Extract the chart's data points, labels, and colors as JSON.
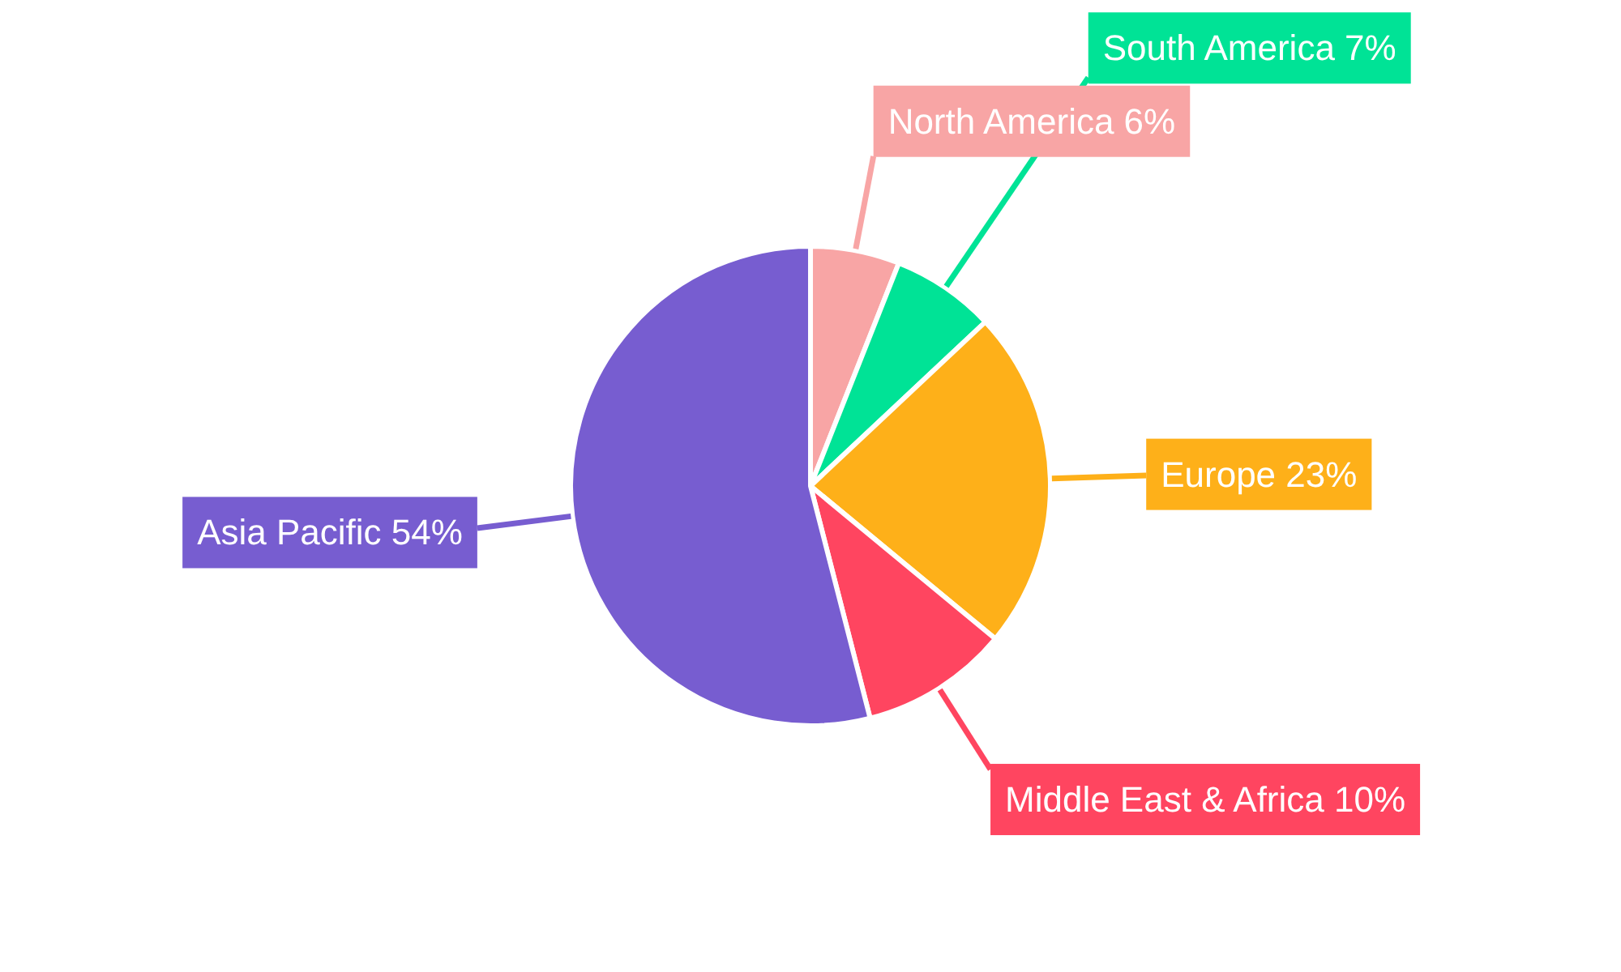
{
  "chart_data": {
    "type": "pie",
    "categories": [
      "North America",
      "South America",
      "Europe",
      "Middle East & Africa",
      "Asia Pacific"
    ],
    "values": [
      6,
      7,
      23,
      10,
      54
    ],
    "colors": [
      "#f8a5a5",
      "#00e396",
      "#feb019",
      "#ff4560",
      "#775dd0"
    ],
    "value_labels": [
      "6%",
      "7%",
      "23%",
      "10%",
      "54%"
    ]
  }
}
